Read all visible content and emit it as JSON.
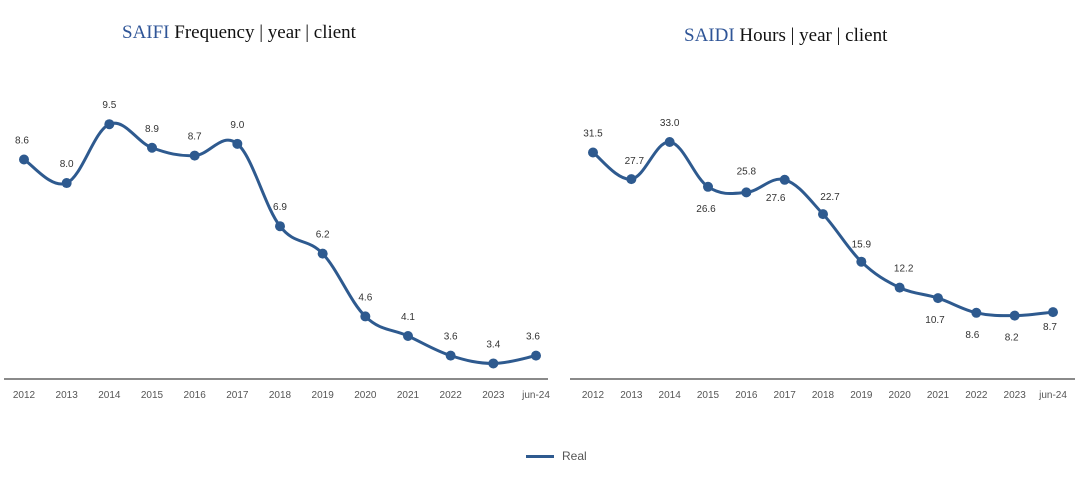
{
  "chart_data": [
    {
      "type": "line",
      "title_metric": "SAIFI",
      "title_rest": " Frequency | year | client",
      "categories": [
        "2012",
        "2013",
        "2014",
        "2015",
        "2016",
        "2017",
        "2018",
        "2019",
        "2020",
        "2021",
        "2022",
        "2023",
        "jun-24"
      ],
      "series": [
        {
          "name": "Real",
          "values": [
            8.6,
            8.0,
            9.5,
            8.9,
            8.7,
            9.0,
            6.9,
            6.2,
            4.6,
            4.1,
            3.6,
            3.4,
            3.6
          ]
        }
      ],
      "ylim": [
        2.8,
        10.5
      ],
      "color": "#2e5a8f"
    },
    {
      "type": "line",
      "title_metric": "SAIDI",
      "title_rest": " Hours | year | client",
      "categories": [
        "2012",
        "2013",
        "2014",
        "2015",
        "2016",
        "2017",
        "2018",
        "2019",
        "2020",
        "2021",
        "2022",
        "2023",
        "jun-24"
      ],
      "series": [
        {
          "name": "Real",
          "values": [
            31.5,
            27.7,
            33.0,
            26.6,
            25.8,
            27.6,
            22.7,
            15.9,
            12.2,
            10.7,
            8.6,
            8.2,
            8.7
          ]
        }
      ],
      "ylim": [
        4,
        40
      ],
      "color": "#2e5a8f"
    }
  ],
  "legend": {
    "label": "Real"
  }
}
